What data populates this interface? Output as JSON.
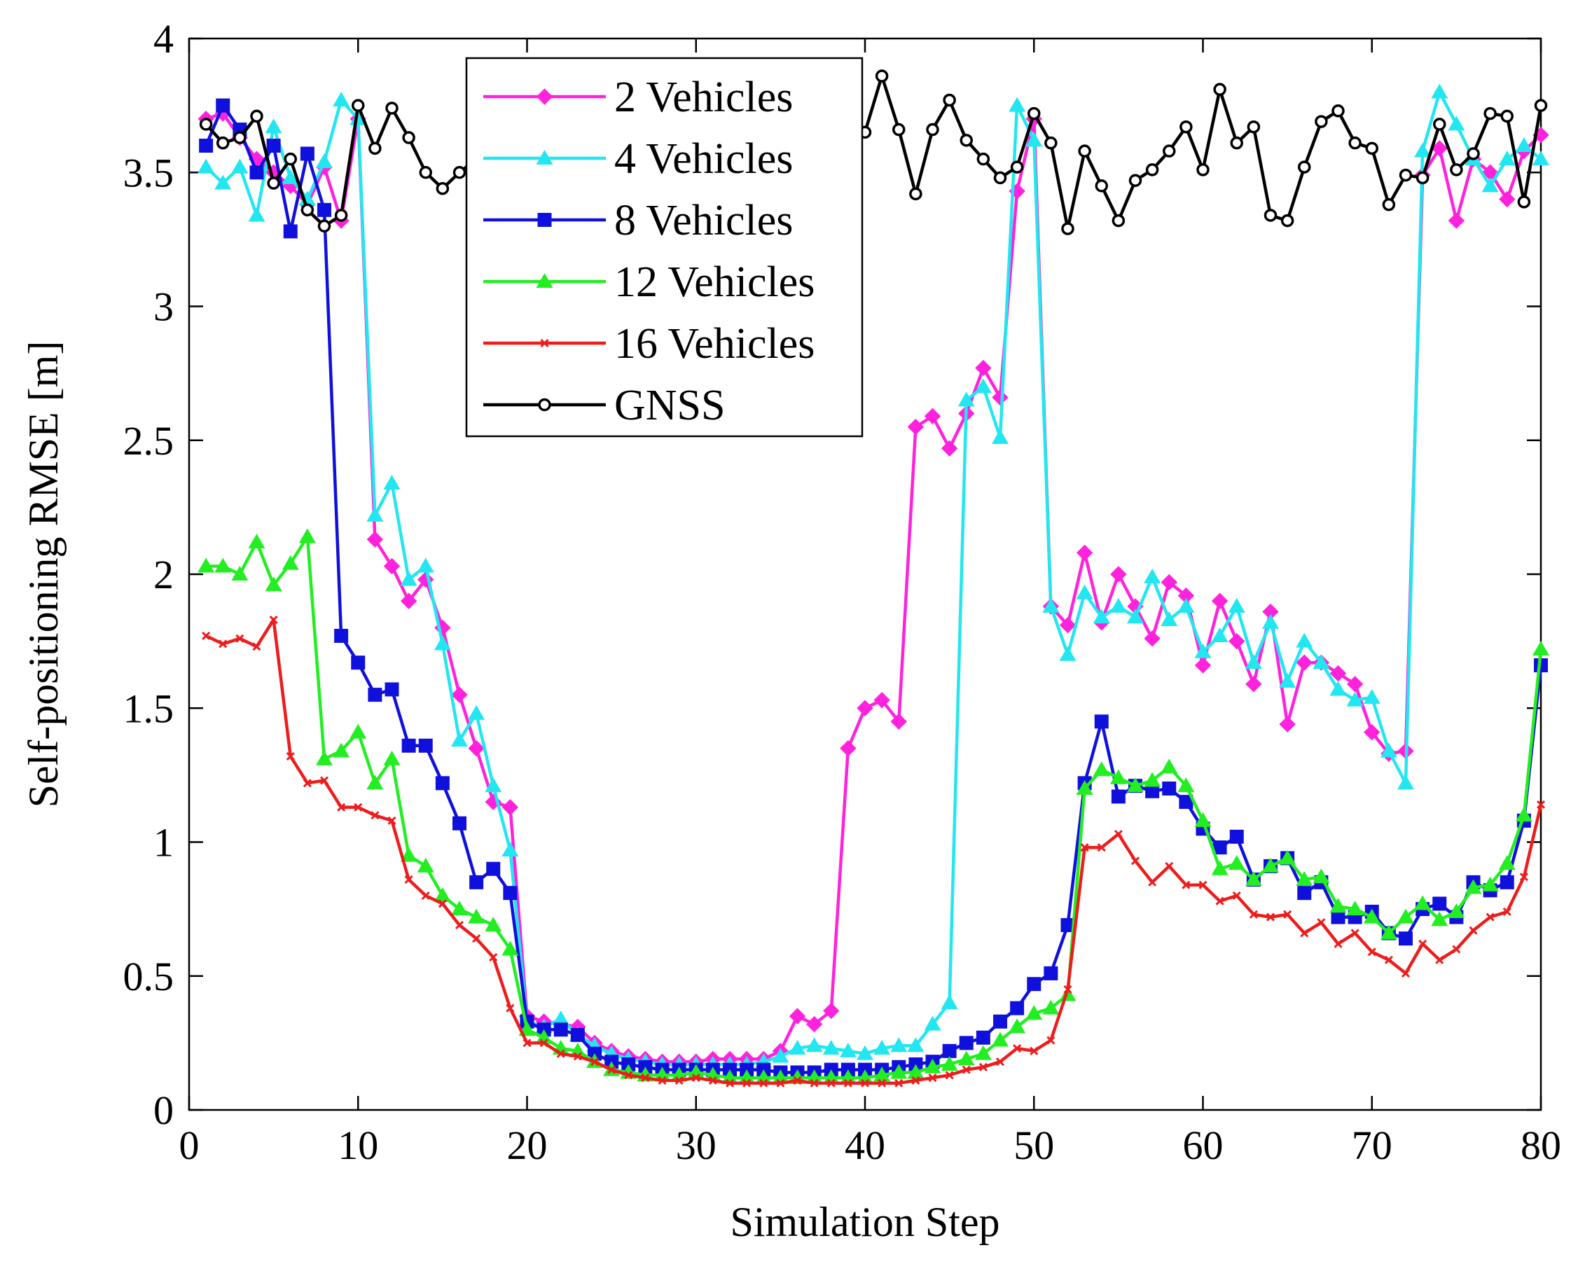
{
  "chart_data": {
    "type": "line",
    "xlabel": "Simulation Step",
    "ylabel": "Self-positioning RMSE [m]",
    "xlim": [
      0,
      80
    ],
    "ylim": [
      0,
      4
    ],
    "xticks": [
      "0",
      "10",
      "20",
      "30",
      "40",
      "50",
      "60",
      "70",
      "80"
    ],
    "yticks": [
      "0",
      "0.5",
      "1",
      "1.5",
      "2",
      "2.5",
      "3",
      "3.5",
      "4"
    ],
    "grid": false,
    "legend_position": "top-center",
    "x": [
      1,
      2,
      3,
      4,
      5,
      6,
      7,
      8,
      9,
      10,
      11,
      12,
      13,
      14,
      15,
      16,
      17,
      18,
      19,
      20,
      21,
      22,
      23,
      24,
      25,
      26,
      27,
      28,
      29,
      30,
      31,
      32,
      33,
      34,
      35,
      36,
      37,
      38,
      39,
      40,
      41,
      42,
      43,
      44,
      45,
      46,
      47,
      48,
      49,
      50,
      51,
      52,
      53,
      54,
      55,
      56,
      57,
      58,
      59,
      60,
      61,
      62,
      63,
      64,
      65,
      66,
      67,
      68,
      69,
      70,
      71,
      72,
      73,
      74,
      75,
      76,
      77,
      78,
      79,
      80
    ],
    "series": [
      {
        "name": "2 Vehicles",
        "color": "#ff22dd",
        "marker": "diamond",
        "values": [
          3.7,
          3.72,
          3.63,
          3.55,
          3.5,
          3.45,
          3.38,
          3.52,
          3.32,
          3.7,
          2.13,
          2.03,
          1.9,
          1.98,
          1.8,
          1.55,
          1.35,
          1.15,
          1.13,
          0.35,
          0.33,
          0.32,
          0.31,
          0.25,
          0.22,
          0.2,
          0.19,
          0.18,
          0.18,
          0.18,
          0.19,
          0.19,
          0.19,
          0.19,
          0.22,
          0.35,
          0.32,
          0.37,
          1.35,
          1.5,
          1.53,
          1.45,
          2.55,
          2.59,
          2.47,
          2.6,
          2.77,
          2.66,
          3.43,
          3.7,
          1.88,
          1.81,
          2.08,
          1.82,
          2.0,
          1.88,
          1.76,
          1.97,
          1.92,
          1.66,
          1.9,
          1.75,
          1.59,
          1.86,
          1.44,
          1.67,
          1.67,
          1.63,
          1.59,
          1.41,
          1.33,
          1.34,
          3.49,
          3.59,
          3.32,
          3.55,
          3.5,
          3.4,
          3.58,
          3.64
        ]
      },
      {
        "name": "4 Vehicles",
        "color": "#22e6f0",
        "marker": "triangle",
        "values": [
          3.52,
          3.46,
          3.52,
          3.34,
          3.67,
          3.48,
          3.4,
          3.54,
          3.77,
          3.7,
          2.22,
          2.34,
          1.98,
          2.03,
          1.74,
          1.38,
          1.48,
          1.21,
          0.97,
          0.33,
          0.31,
          0.34,
          0.28,
          0.24,
          0.21,
          0.19,
          0.18,
          0.17,
          0.17,
          0.17,
          0.17,
          0.17,
          0.17,
          0.18,
          0.2,
          0.23,
          0.24,
          0.23,
          0.22,
          0.21,
          0.23,
          0.24,
          0.24,
          0.32,
          0.4,
          2.65,
          2.7,
          2.51,
          3.75,
          3.62,
          1.88,
          1.7,
          1.93,
          1.84,
          1.88,
          1.84,
          1.99,
          1.83,
          1.88,
          1.71,
          1.77,
          1.88,
          1.67,
          1.82,
          1.6,
          1.75,
          1.67,
          1.57,
          1.53,
          1.54,
          1.34,
          1.22,
          3.58,
          3.8,
          3.68,
          3.55,
          3.45,
          3.55,
          3.6,
          3.55
        ]
      },
      {
        "name": "8 Vehicles",
        "color": "#1010dd",
        "marker": "square",
        "values": [
          3.6,
          3.75,
          3.66,
          3.5,
          3.6,
          3.28,
          3.57,
          3.36,
          1.77,
          1.67,
          1.55,
          1.57,
          1.36,
          1.36,
          1.22,
          1.07,
          0.85,
          0.9,
          0.81,
          0.33,
          0.3,
          0.3,
          0.28,
          0.21,
          0.18,
          0.17,
          0.16,
          0.15,
          0.15,
          0.15,
          0.15,
          0.15,
          0.15,
          0.15,
          0.14,
          0.14,
          0.14,
          0.15,
          0.15,
          0.15,
          0.15,
          0.16,
          0.17,
          0.18,
          0.22,
          0.25,
          0.27,
          0.33,
          0.38,
          0.47,
          0.51,
          0.69,
          1.22,
          1.45,
          1.17,
          1.21,
          1.19,
          1.2,
          1.15,
          1.05,
          0.98,
          1.02,
          0.86,
          0.91,
          0.94,
          0.81,
          0.85,
          0.72,
          0.72,
          0.74,
          0.66,
          0.64,
          0.75,
          0.77,
          0.72,
          0.85,
          0.82,
          0.85,
          1.08,
          1.66
        ]
      },
      {
        "name": "12 Vehicles",
        "color": "#22ee22",
        "marker": "triangle",
        "values": [
          2.03,
          2.03,
          2.0,
          2.12,
          1.96,
          2.04,
          2.14,
          1.31,
          1.34,
          1.41,
          1.22,
          1.31,
          0.95,
          0.91,
          0.8,
          0.75,
          0.72,
          0.69,
          0.6,
          0.3,
          0.27,
          0.23,
          0.22,
          0.18,
          0.15,
          0.14,
          0.13,
          0.13,
          0.13,
          0.14,
          0.13,
          0.12,
          0.12,
          0.12,
          0.12,
          0.12,
          0.12,
          0.12,
          0.12,
          0.12,
          0.13,
          0.14,
          0.14,
          0.16,
          0.17,
          0.19,
          0.21,
          0.26,
          0.31,
          0.36,
          0.38,
          0.43,
          1.2,
          1.27,
          1.24,
          1.21,
          1.23,
          1.28,
          1.21,
          1.08,
          0.9,
          0.92,
          0.86,
          0.91,
          0.94,
          0.86,
          0.87,
          0.76,
          0.75,
          0.72,
          0.66,
          0.72,
          0.77,
          0.71,
          0.74,
          0.83,
          0.84,
          0.92,
          1.1,
          1.72
        ]
      },
      {
        "name": "16 Vehicles",
        "color": "#ee1c1c",
        "marker": "x",
        "values": [
          1.77,
          1.74,
          1.76,
          1.73,
          1.83,
          1.32,
          1.22,
          1.23,
          1.13,
          1.13,
          1.1,
          1.08,
          0.86,
          0.8,
          0.77,
          0.69,
          0.64,
          0.57,
          0.38,
          0.25,
          0.25,
          0.21,
          0.2,
          0.18,
          0.15,
          0.13,
          0.12,
          0.11,
          0.11,
          0.12,
          0.11,
          0.1,
          0.1,
          0.1,
          0.1,
          0.11,
          0.1,
          0.1,
          0.1,
          0.1,
          0.1,
          0.1,
          0.11,
          0.12,
          0.13,
          0.15,
          0.16,
          0.18,
          0.23,
          0.22,
          0.26,
          0.45,
          0.98,
          0.98,
          1.03,
          0.93,
          0.85,
          0.91,
          0.84,
          0.84,
          0.78,
          0.8,
          0.73,
          0.72,
          0.73,
          0.66,
          0.7,
          0.62,
          0.66,
          0.59,
          0.56,
          0.51,
          0.62,
          0.56,
          0.6,
          0.67,
          0.72,
          0.74,
          0.87,
          1.14
        ]
      },
      {
        "name": "GNSS",
        "color": "#000000",
        "marker": "circle",
        "values": [
          3.68,
          3.61,
          3.63,
          3.71,
          3.46,
          3.55,
          3.36,
          3.3,
          3.34,
          3.75,
          3.59,
          3.74,
          3.63,
          3.5,
          3.44,
          3.5,
          3.55,
          3.62,
          3.6,
          3.6,
          3.62,
          3.64,
          3.62,
          3.6,
          3.63,
          3.65,
          3.62,
          3.6,
          3.61,
          3.62,
          3.64,
          3.66,
          3.63,
          3.6,
          3.62,
          3.64,
          3.61,
          3.6,
          3.62,
          3.65,
          3.86,
          3.66,
          3.42,
          3.66,
          3.77,
          3.62,
          3.55,
          3.48,
          3.52,
          3.72,
          3.61,
          3.29,
          3.58,
          3.45,
          3.32,
          3.47,
          3.51,
          3.58,
          3.67,
          3.51,
          3.81,
          3.61,
          3.67,
          3.34,
          3.32,
          3.52,
          3.69,
          3.73,
          3.61,
          3.59,
          3.38,
          3.49,
          3.48,
          3.68,
          3.51,
          3.57,
          3.72,
          3.71,
          3.39,
          3.75
        ]
      }
    ]
  }
}
